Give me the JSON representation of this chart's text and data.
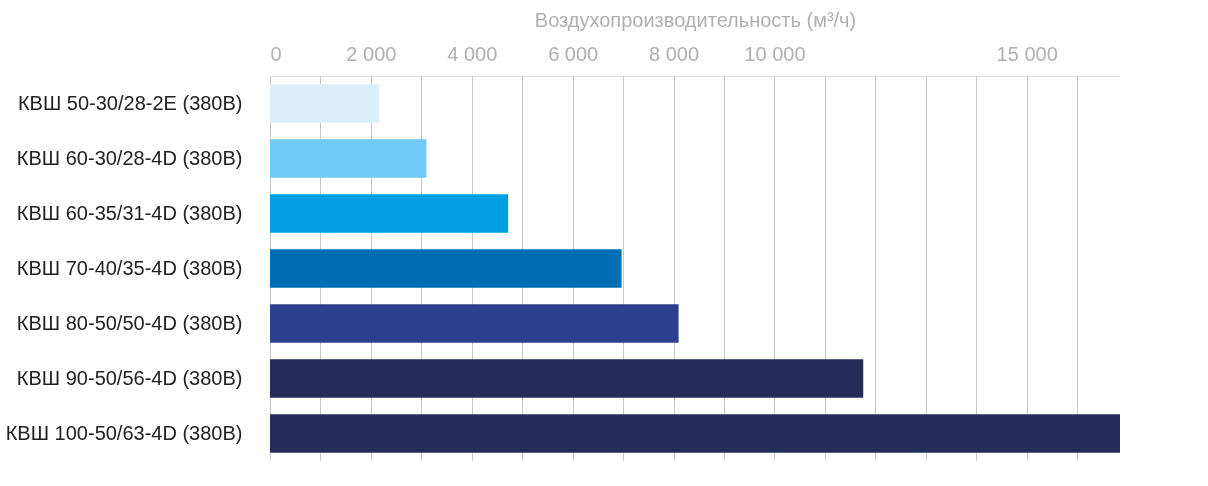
{
  "chart_data": {
    "type": "bar",
    "orientation": "horizontal",
    "xlabel": "Воздухопроизводительность (м³/ч)",
    "categories": [
      "КВШ 50-30/28-2E (380В)",
      "КВШ 60-30/28-4D (380В)",
      "КВШ 60-35/31-4D (380В)",
      "КВШ 70-40/35-4D (380В)",
      "КВШ 80-50/50-4D (380В)",
      "КВШ 90-50/56-4D (380В)",
      "КВШ 100-50/63-4D (380В)"
    ],
    "values": [
      2170,
      3100,
      4720,
      6970,
      8100,
      11760,
      16850
    ],
    "colors": [
      "#dbeefa",
      "#6ecbf5",
      "#00a0e3",
      "#006db6",
      "#2e3f8f",
      "#262c5a",
      "#262c5a"
    ],
    "xlim": [
      0,
      16850
    ],
    "xticks": [
      0,
      {
        "value": 1000,
        "label": null
      },
      {
        "value": 2000,
        "label": "2 000"
      },
      {
        "value": 3000,
        "label": null
      },
      {
        "value": 4000,
        "label": "4 000"
      },
      {
        "value": 5000,
        "label": null
      },
      {
        "value": 6000,
        "label": "6 000"
      },
      {
        "value": 7000,
        "label": null
      },
      {
        "value": 8000,
        "label": "8 000"
      },
      {
        "value": 9000,
        "label": null
      },
      {
        "value": 10000,
        "label": "10 000"
      },
      {
        "value": 11000,
        "label": null
      },
      {
        "value": 12000,
        "label": null
      },
      {
        "value": 13000,
        "label": null
      },
      {
        "value": 14000,
        "label": null
      },
      {
        "value": 15000,
        "label": "15 000"
      },
      {
        "value": 16000,
        "label": null
      }
    ],
    "grid": "x"
  }
}
